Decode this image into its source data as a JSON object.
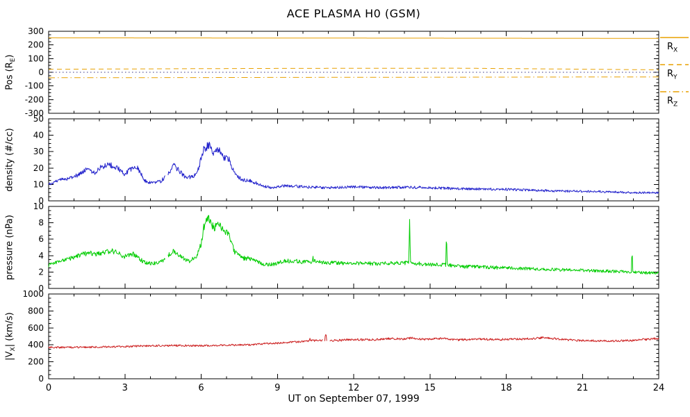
{
  "title": "ACE PLASMA H0 (GSM)",
  "xlabel": "UT on September 07, 1999",
  "legend": [
    {
      "pre": "R",
      "sub": "X",
      "dash": "solid",
      "color": "#E8A000"
    },
    {
      "pre": "R",
      "sub": "Y",
      "dash": "dash",
      "color": "#E8A000"
    },
    {
      "pre": "R",
      "sub": "Z",
      "dash": "dashdot",
      "color": "#E8A000"
    }
  ],
  "chart_data": {
    "type": "line",
    "x_range": [
      0,
      24
    ],
    "x_major_ticks": [
      0,
      3,
      6,
      9,
      12,
      15,
      18,
      21,
      24
    ],
    "x_minor_step": 1,
    "panels": [
      {
        "name": "position",
        "ylabel": {
          "pre": "Pos (R",
          "sub": "E",
          "post": ")"
        },
        "ylim": [
          -300,
          300
        ],
        "yticks": [
          -300,
          -200,
          -100,
          0,
          100,
          200,
          300
        ],
        "y_minor_step": 25,
        "series": [
          {
            "name": "R_X",
            "color": "#E8A000",
            "dash": "solid",
            "noise_abs": 0,
            "noise_rel": 0,
            "keypoints": [
              [
                0,
                252
              ],
              [
                24,
                248
              ]
            ]
          },
          {
            "name": "R_Y",
            "color": "#E8A000",
            "dash": "dash",
            "noise_abs": 0,
            "noise_rel": 0,
            "keypoints": [
              [
                0,
                22
              ],
              [
                8,
                28
              ],
              [
                16,
                30
              ],
              [
                24,
                18
              ]
            ]
          },
          {
            "name": "R_Z",
            "color": "#E8A000",
            "dash": "dashdot",
            "noise_abs": 0,
            "noise_rel": 0,
            "keypoints": [
              [
                0,
                -40
              ],
              [
                24,
                -34
              ]
            ]
          },
          {
            "name": "zero-reference",
            "color": "#333388",
            "dash": "dot",
            "noise_abs": 0,
            "noise_rel": 0,
            "keypoints": [
              [
                0,
                0
              ],
              [
                24,
                0
              ]
            ]
          }
        ]
      },
      {
        "name": "density",
        "ylabel": {
          "pre": "density (#/cc)",
          "sub": "",
          "post": ""
        },
        "ylim": [
          0,
          50
        ],
        "yticks": [
          0,
          10,
          20,
          30,
          40,
          50
        ],
        "y_minor_step": 2.5,
        "series": [
          {
            "name": "proton-density",
            "color": "#2222CC",
            "dash": "solid",
            "noise_abs": 0.25,
            "noise_rel": 0.07,
            "gaps": [
              [
                4.6,
                4.68
              ]
            ],
            "keypoints": [
              [
                0,
                10
              ],
              [
                0.3,
                12
              ],
              [
                0.8,
                14
              ],
              [
                1.2,
                16
              ],
              [
                1.5,
                20
              ],
              [
                1.8,
                17
              ],
              [
                2.1,
                21
              ],
              [
                2.4,
                22
              ],
              [
                2.7,
                20
              ],
              [
                3.0,
                16
              ],
              [
                3.2,
                19
              ],
              [
                3.5,
                20
              ],
              [
                3.8,
                12
              ],
              [
                4.1,
                11
              ],
              [
                4.4,
                12
              ],
              [
                4.7,
                16
              ],
              [
                4.9,
                22
              ],
              [
                5.1,
                19
              ],
              [
                5.4,
                14
              ],
              [
                5.7,
                15
              ],
              [
                5.9,
                20
              ],
              [
                6.0,
                26
              ],
              [
                6.1,
                31
              ],
              [
                6.3,
                34
              ],
              [
                6.5,
                29
              ],
              [
                6.7,
                31
              ],
              [
                6.9,
                26
              ],
              [
                7.1,
                25
              ],
              [
                7.3,
                17
              ],
              [
                7.6,
                13
              ],
              [
                8.0,
                12
              ],
              [
                8.4,
                9
              ],
              [
                8.8,
                8
              ],
              [
                9.2,
                9
              ],
              [
                9.6,
                9
              ],
              [
                10,
                8.5
              ],
              [
                11,
                8
              ],
              [
                12,
                8.5
              ],
              [
                13,
                8
              ],
              [
                14,
                8.3
              ],
              [
                15,
                8
              ],
              [
                16,
                7.5
              ],
              [
                17,
                7.2
              ],
              [
                18,
                7
              ],
              [
                19,
                6.5
              ],
              [
                20,
                6
              ],
              [
                21,
                5.8
              ],
              [
                22,
                5.5
              ],
              [
                23,
                5
              ],
              [
                24,
                5
              ]
            ]
          }
        ]
      },
      {
        "name": "pressure",
        "ylabel": {
          "pre": "pressure (nPa)",
          "sub": "",
          "post": ""
        },
        "ylim": [
          0,
          10
        ],
        "yticks": [
          0,
          2,
          4,
          6,
          8,
          10
        ],
        "y_minor_step": 0.5,
        "series": [
          {
            "name": "flow-pressure",
            "color": "#00CC00",
            "dash": "solid",
            "noise_abs": 0.06,
            "noise_rel": 0.06,
            "gaps": [
              [
                4.6,
                4.68
              ]
            ],
            "keypoints": [
              [
                0,
                2.8
              ],
              [
                0.5,
                3.4
              ],
              [
                1,
                3.8
              ],
              [
                1.5,
                4.3
              ],
              [
                2,
                4.2
              ],
              [
                2.5,
                4.6
              ],
              [
                3,
                3.9
              ],
              [
                3.3,
                4.2
              ],
              [
                3.8,
                3.1
              ],
              [
                4.1,
                3.0
              ],
              [
                4.5,
                3.4
              ],
              [
                4.9,
                4.6
              ],
              [
                5.2,
                3.9
              ],
              [
                5.5,
                3.3
              ],
              [
                5.8,
                3.8
              ],
              [
                6.0,
                5.5
              ],
              [
                6.1,
                7.5
              ],
              [
                6.3,
                8.6
              ],
              [
                6.5,
                7.3
              ],
              [
                6.7,
                8.2
              ],
              [
                6.9,
                6.8
              ],
              [
                7.1,
                6.6
              ],
              [
                7.3,
                4.5
              ],
              [
                7.6,
                3.7
              ],
              [
                8.0,
                3.6
              ],
              [
                8.4,
                3.0
              ],
              [
                8.8,
                2.9
              ],
              [
                9.2,
                3.3
              ],
              [
                9.6,
                3.4
              ],
              [
                10,
                3.2
              ],
              [
                10.38,
                3.3
              ],
              [
                10.4,
                4.2
              ],
              [
                10.42,
                3.3
              ],
              [
                11,
                3.1
              ],
              [
                12,
                3.1
              ],
              [
                13,
                3.0
              ],
              [
                14,
                3.1
              ],
              [
                14.17,
                3.1
              ],
              [
                14.2,
                8.7
              ],
              [
                14.23,
                3.1
              ],
              [
                15,
                2.9
              ],
              [
                15.62,
                2.9
              ],
              [
                15.65,
                6.6
              ],
              [
                15.68,
                2.9
              ],
              [
                16,
                2.7
              ],
              [
                17,
                2.6
              ],
              [
                18,
                2.5
              ],
              [
                19,
                2.4
              ],
              [
                20,
                2.3
              ],
              [
                21,
                2.2
              ],
              [
                22,
                2.1
              ],
              [
                22.92,
                2.0
              ],
              [
                22.95,
                4.6
              ],
              [
                22.98,
                2.0
              ],
              [
                23.5,
                1.9
              ],
              [
                24,
                1.9
              ]
            ]
          }
        ]
      },
      {
        "name": "velocity",
        "ylabel": {
          "pre": "|V",
          "sub": "X",
          "post": "| (km/s)"
        },
        "ylim": [
          0,
          1000
        ],
        "yticks": [
          0,
          200,
          400,
          600,
          800,
          1000
        ],
        "y_minor_step": 50,
        "series": [
          {
            "name": "vx-magnitude",
            "color": "#CC2020",
            "dash": "solid",
            "noise_abs": 4,
            "noise_rel": 0.018,
            "gaps": [
              [
                10.8,
                10.85
              ],
              [
                10.95,
                11.05
              ]
            ],
            "keypoints": [
              [
                0,
                370
              ],
              [
                1,
                372
              ],
              [
                2,
                375
              ],
              [
                3,
                380
              ],
              [
                4,
                390
              ],
              [
                5,
                392
              ],
              [
                6,
                388
              ],
              [
                7,
                398
              ],
              [
                8,
                400
              ],
              [
                8.5,
                415
              ],
              [
                9,
                420
              ],
              [
                9.5,
                430
              ],
              [
                10,
                440
              ],
              [
                10.26,
                450
              ],
              [
                10.28,
                475
              ],
              [
                10.3,
                450
              ],
              [
                10.5,
                450
              ],
              [
                10.86,
                455
              ],
              [
                10.88,
                515
              ],
              [
                10.92,
                515
              ],
              [
                10.94,
                455
              ],
              [
                11.1,
                450
              ],
              [
                11.5,
                455
              ],
              [
                12,
                465
              ],
              [
                12.5,
                460
              ],
              [
                13,
                462
              ],
              [
                13.5,
                475
              ],
              [
                14,
                468
              ],
              [
                14.3,
                485
              ],
              [
                14.6,
                470
              ],
              [
                15,
                468
              ],
              [
                15.5,
                478
              ],
              [
                16,
                458
              ],
              [
                16.5,
                462
              ],
              [
                17,
                468
              ],
              [
                17.5,
                462
              ],
              [
                18,
                465
              ],
              [
                18.5,
                470
              ],
              [
                19,
                472
              ],
              [
                19.5,
                488
              ],
              [
                20,
                470
              ],
              [
                20.5,
                458
              ],
              [
                21,
                452
              ],
              [
                21.5,
                448
              ],
              [
                22,
                445
              ],
              [
                22.5,
                448
              ],
              [
                23,
                452
              ],
              [
                23.5,
                465
              ],
              [
                24,
                478
              ]
            ]
          }
        ]
      }
    ]
  }
}
